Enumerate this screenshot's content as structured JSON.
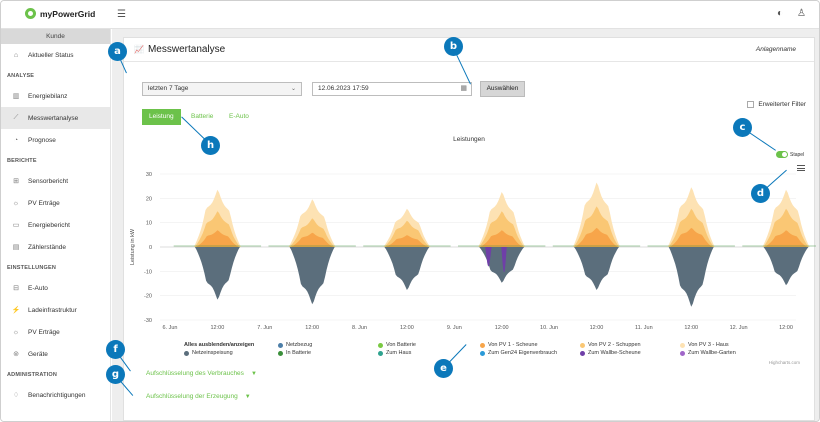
{
  "app": {
    "name": "myPowerGrid",
    "accent": "#6cc24a",
    "badge_color": "#0b78ba"
  },
  "sidebar": {
    "kunde": "Kunde",
    "top": [
      {
        "label": "Aktueller Status",
        "icon": "dashboard-icon"
      }
    ],
    "sections": [
      {
        "title": "ANALYSE",
        "items": [
          {
            "label": "Energiebilanz",
            "icon": "bar-chart-icon"
          },
          {
            "label": "Messwertanalyse",
            "icon": "line-chart-icon",
            "active": true
          },
          {
            "label": "Prognose",
            "icon": "forecast-icon"
          }
        ]
      },
      {
        "title": "BERICHTE",
        "items": [
          {
            "label": "Sensorbericht",
            "icon": "sensor-icon"
          },
          {
            "label": "PV Erträge",
            "icon": "sun-icon"
          },
          {
            "label": "Energiebericht",
            "icon": "folder-icon"
          },
          {
            "label": "Zählerstände",
            "icon": "meter-icon"
          }
        ]
      },
      {
        "title": "EINSTELLUNGEN",
        "items": [
          {
            "label": "E-Auto",
            "icon": "car-icon"
          },
          {
            "label": "Ladeinfrastruktur",
            "icon": "plug-icon"
          },
          {
            "label": "PV Erträge",
            "icon": "sun-icon"
          },
          {
            "label": "Geräte",
            "icon": "device-icon"
          }
        ]
      },
      {
        "title": "ADMINISTRATION",
        "items": [
          {
            "label": "Benachrichtigungen",
            "icon": "bell-icon"
          }
        ]
      }
    ]
  },
  "page": {
    "title": "Messwertanalyse",
    "anlagenname": "Anlagenname"
  },
  "controls": {
    "range_value": "letzten 7 Tage",
    "datetime_value": "12.06.2023 17:59",
    "select_label": "Auswählen",
    "filter_label": "Erweiterter Filter"
  },
  "tabs": [
    {
      "label": "Leistung",
      "active": true
    },
    {
      "label": "Batterie"
    },
    {
      "label": "E-Auto"
    }
  ],
  "stapel_label": "Stapel",
  "accordions": [
    "Aufschlüsselung des Verbrauches",
    "Aufschlüsselung der Erzeugung"
  ],
  "callouts": [
    "a",
    "b",
    "c",
    "d",
    "e",
    "f",
    "g",
    "h"
  ],
  "chart_data": {
    "type": "area",
    "title": "Leistungen",
    "ylabel": "Leistung in kW",
    "ylim": [
      -30,
      30
    ],
    "yticks": [
      30,
      20,
      10,
      0,
      -10,
      -20,
      -30
    ],
    "xticks": [
      "6. Jun",
      "12:00",
      "7. Jun",
      "12:00",
      "8. Jun",
      "12:00",
      "9. Jun",
      "12:00",
      "10. Jun",
      "12:00",
      "11. Jun",
      "12:00",
      "12. Jun",
      "12:00"
    ],
    "days": [
      "6. Jun",
      "7. Jun",
      "8. Jun",
      "9. Jun",
      "10. Jun",
      "11. Jun",
      "12. Jun"
    ],
    "series": [
      {
        "name": "Von PV 3 - Haus",
        "color": "#fde2b3",
        "peaks_kw": [
          9,
          8,
          5,
          8,
          10,
          9,
          8
        ]
      },
      {
        "name": "Von PV 2 - Schuppen",
        "color": "#fac774",
        "peaks_kw": [
          8,
          6,
          6,
          8,
          9,
          8,
          9
        ]
      },
      {
        "name": "Von PV 1 - Scheune",
        "color": "#f7a54a",
        "peaks_kw": [
          7,
          6,
          5,
          7,
          8,
          8,
          7
        ]
      },
      {
        "name": "Netzeinspeisung",
        "color": "#5b6e7c",
        "peaks_kw": [
          -22,
          -24,
          -18,
          -15,
          -18,
          -25,
          -16
        ]
      },
      {
        "name": "Zum Wallbe-Scheune",
        "color": "#6f3fa8",
        "peaks_kw": [
          0,
          0,
          0,
          -8,
          0,
          0,
          0
        ]
      },
      {
        "name": "Zum Gen24 Eigenverbrauch",
        "color": "#2a9ad8",
        "peaks_kw": [
          0,
          0,
          0,
          0,
          0,
          0,
          0
        ]
      }
    ],
    "legend": [
      {
        "name": "Alles ausblenden/anzeigen",
        "color": "",
        "bold": true
      },
      {
        "name": "Netzeinspeisung",
        "color": "#5b6e7c"
      },
      {
        "name": "Netzbezug",
        "color": "#4d7ea8"
      },
      {
        "name": "In Batterie",
        "color": "#3a8f3a"
      },
      {
        "name": "Von Batterie",
        "color": "#7ac943"
      },
      {
        "name": "Zum Haus",
        "color": "#2fa38f"
      },
      {
        "name": "Von PV 1 - Scheune",
        "color": "#f7a54a"
      },
      {
        "name": "Zum Gen24 Eigenverbrauch",
        "color": "#2a9ad8"
      },
      {
        "name": "Von PV 2 - Schuppen",
        "color": "#fac774"
      },
      {
        "name": "Zum Wallbe-Scheune",
        "color": "#6f3fa8"
      },
      {
        "name": "Von PV 3 - Haus",
        "color": "#fde2b3"
      },
      {
        "name": "Zum Wallbe-Garten",
        "color": "#a066c9"
      }
    ],
    "credit": "Highcharts.com"
  }
}
